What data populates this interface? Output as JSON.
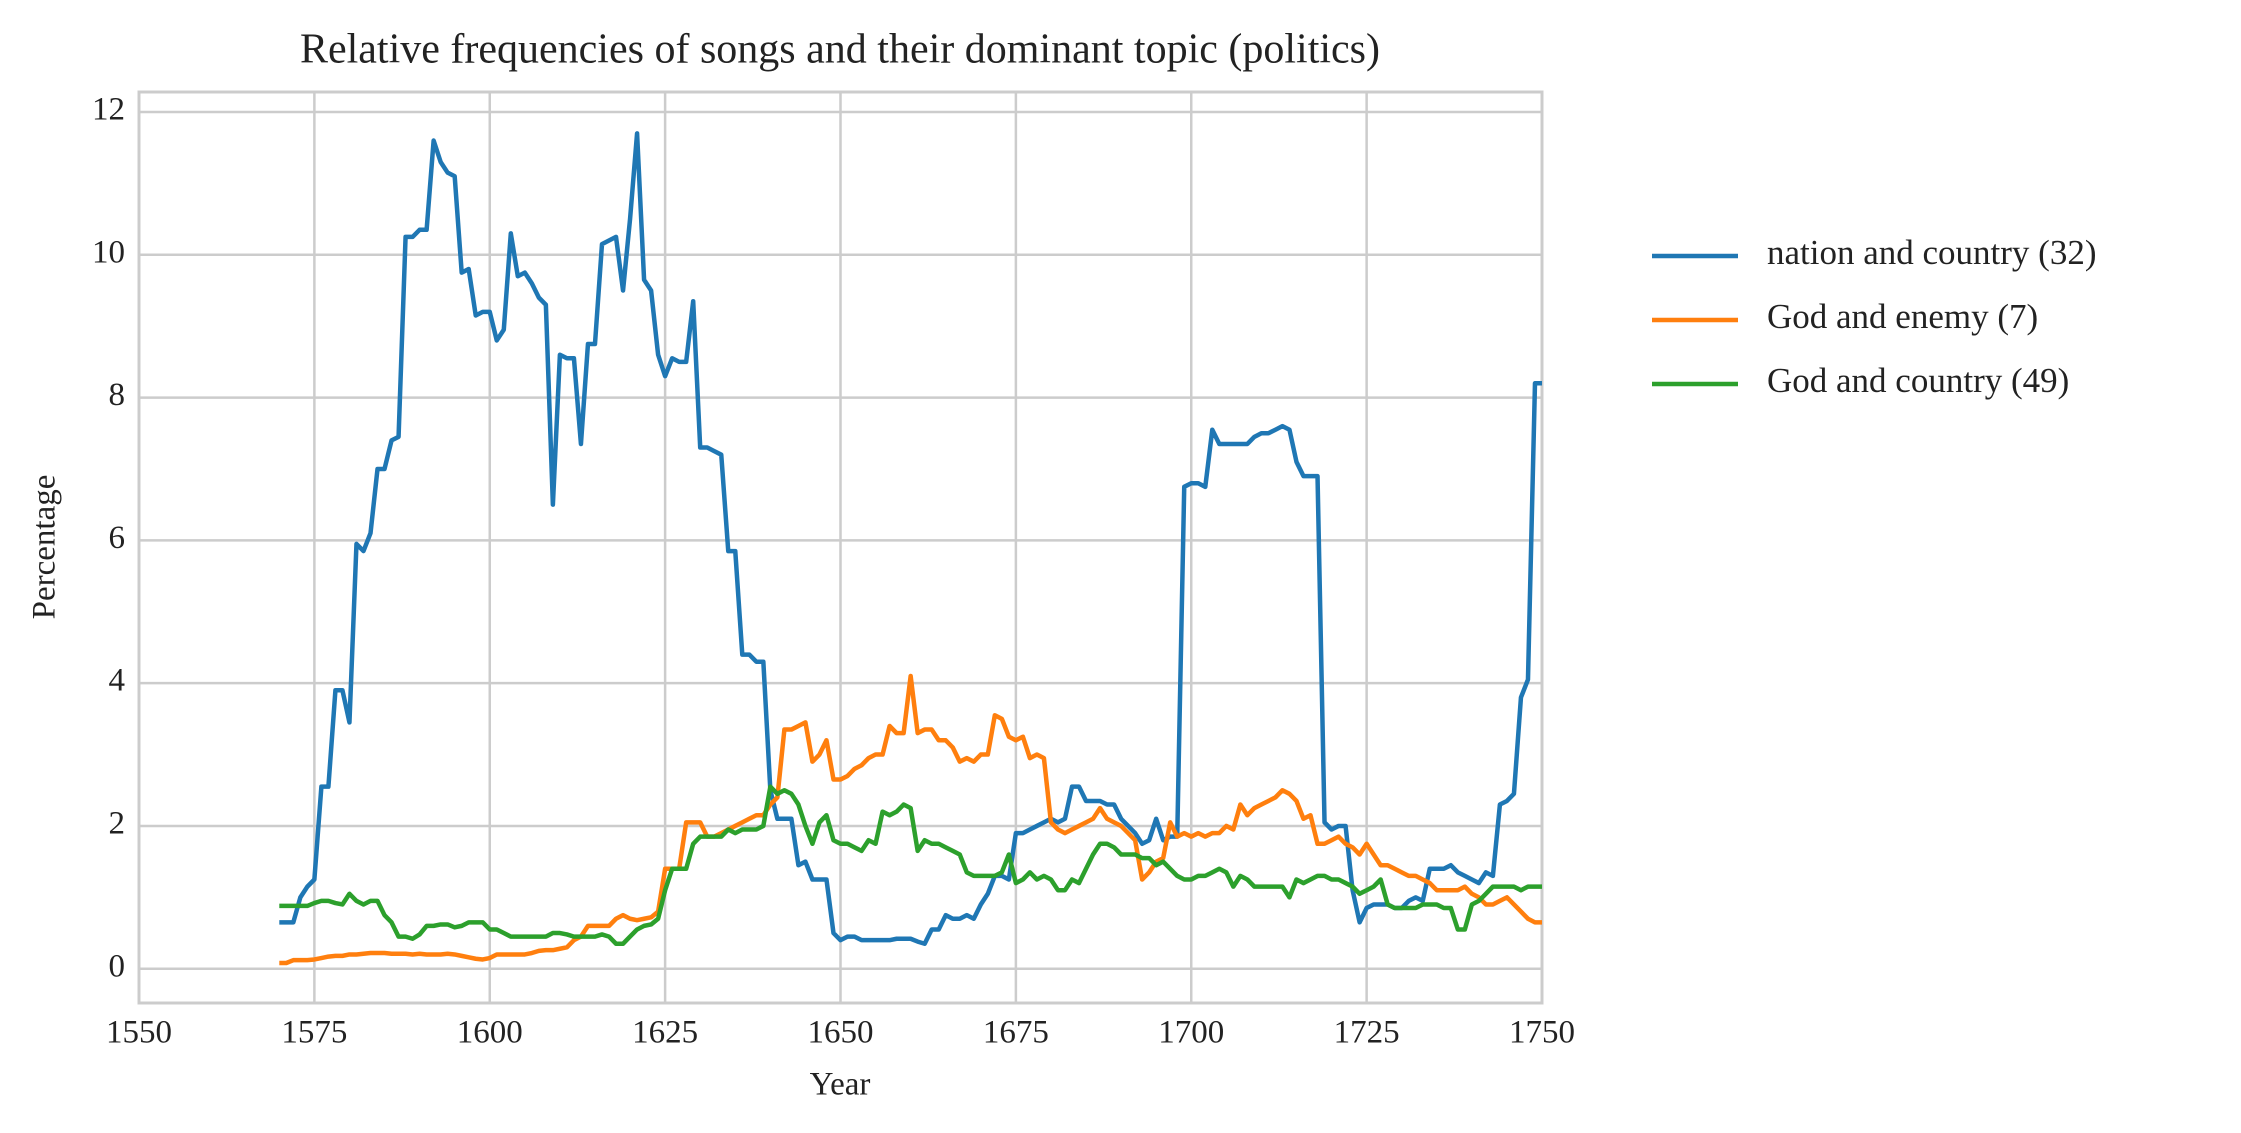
{
  "chart_data": {
    "type": "line",
    "title": "Relative frequencies of songs and their dominant topic (politics)",
    "xlabel": "Year",
    "ylabel": "Percentage",
    "x": [
      1570,
      1571,
      1572,
      1573,
      1574,
      1575,
      1576,
      1577,
      1578,
      1579,
      1580,
      1581,
      1582,
      1583,
      1584,
      1585,
      1586,
      1587,
      1588,
      1589,
      1590,
      1591,
      1592,
      1593,
      1594,
      1595,
      1596,
      1597,
      1598,
      1599,
      1600,
      1601,
      1602,
      1603,
      1604,
      1605,
      1606,
      1607,
      1608,
      1609,
      1610,
      1611,
      1612,
      1613,
      1614,
      1615,
      1616,
      1617,
      1618,
      1619,
      1620,
      1621,
      1622,
      1623,
      1624,
      1625,
      1626,
      1627,
      1628,
      1629,
      1630,
      1631,
      1632,
      1633,
      1634,
      1635,
      1636,
      1637,
      1638,
      1639,
      1640,
      1641,
      1642,
      1643,
      1644,
      1645,
      1646,
      1647,
      1648,
      1649,
      1650,
      1651,
      1652,
      1653,
      1654,
      1655,
      1656,
      1657,
      1658,
      1659,
      1660,
      1661,
      1662,
      1663,
      1664,
      1665,
      1666,
      1667,
      1668,
      1669,
      1670,
      1671,
      1672,
      1673,
      1674,
      1675,
      1676,
      1677,
      1678,
      1679,
      1680,
      1681,
      1682,
      1683,
      1684,
      1685,
      1686,
      1687,
      1688,
      1689,
      1690,
      1691,
      1692,
      1693,
      1694,
      1695,
      1696,
      1697,
      1698,
      1699,
      1700,
      1701,
      1702,
      1703,
      1704,
      1705,
      1706,
      1707,
      1708,
      1709,
      1710,
      1711,
      1712,
      1713,
      1714,
      1715,
      1716,
      1717,
      1718,
      1719,
      1720,
      1721,
      1722,
      1723,
      1724,
      1725,
      1726,
      1727,
      1728,
      1729,
      1730,
      1731,
      1732,
      1733,
      1734,
      1735,
      1736,
      1737,
      1738,
      1739,
      1740,
      1741,
      1742,
      1743,
      1744,
      1745,
      1746,
      1747,
      1748,
      1749,
      1750
    ],
    "series": [
      {
        "name": "nation and country (32)",
        "color": "#1f77b4",
        "values": [
          0.65,
          0.65,
          0.65,
          1.0,
          1.15,
          1.25,
          2.55,
          2.55,
          3.9,
          3.9,
          3.45,
          5.95,
          5.85,
          6.1,
          7.0,
          7.0,
          7.4,
          7.45,
          10.25,
          10.25,
          10.35,
          10.35,
          11.6,
          11.3,
          11.15,
          11.1,
          9.75,
          9.8,
          9.15,
          9.2,
          9.2,
          8.8,
          8.95,
          10.3,
          9.7,
          9.75,
          9.6,
          9.4,
          9.3,
          6.5,
          8.6,
          8.55,
          8.55,
          7.35,
          8.75,
          8.75,
          10.15,
          10.2,
          10.25,
          9.5,
          10.5,
          11.7,
          9.65,
          9.5,
          8.6,
          8.3,
          8.55,
          8.5,
          8.5,
          9.35,
          7.3,
          7.3,
          7.25,
          7.2,
          5.85,
          5.85,
          4.4,
          4.4,
          4.3,
          4.3,
          2.5,
          2.1,
          2.1,
          2.1,
          1.45,
          1.5,
          1.25,
          1.25,
          1.25,
          0.5,
          0.4,
          0.45,
          0.45,
          0.4,
          0.4,
          0.4,
          0.4,
          0.4,
          0.42,
          0.42,
          0.42,
          0.38,
          0.35,
          0.55,
          0.55,
          0.75,
          0.7,
          0.7,
          0.75,
          0.7,
          0.9,
          1.05,
          1.3,
          1.3,
          1.25,
          1.9,
          1.9,
          1.95,
          2.0,
          2.05,
          2.1,
          2.05,
          2.1,
          2.55,
          2.55,
          2.35,
          2.35,
          2.35,
          2.3,
          2.3,
          2.1,
          2.0,
          1.9,
          1.75,
          1.8,
          2.1,
          1.8,
          1.85,
          1.85,
          6.75,
          6.8,
          6.8,
          6.75,
          7.55,
          7.35,
          7.35,
          7.35,
          7.35,
          7.35,
          7.45,
          7.5,
          7.5,
          7.55,
          7.6,
          7.55,
          7.1,
          6.9,
          6.9,
          6.9,
          2.05,
          1.95,
          2.0,
          2.0,
          1.1,
          0.65,
          0.85,
          0.9,
          0.9,
          0.9,
          0.85,
          0.85,
          0.95,
          1.0,
          0.95,
          1.4,
          1.4,
          1.4,
          1.45,
          1.35,
          1.3,
          1.25,
          1.2,
          1.35,
          1.3,
          2.3,
          2.35,
          2.45,
          3.8,
          4.05,
          8.2,
          8.2
        ]
      },
      {
        "name": "God and enemy (7)",
        "color": "#ff7f0e",
        "values": [
          0.08,
          0.08,
          0.12,
          0.12,
          0.12,
          0.13,
          0.15,
          0.17,
          0.18,
          0.18,
          0.2,
          0.2,
          0.21,
          0.22,
          0.22,
          0.22,
          0.21,
          0.21,
          0.21,
          0.2,
          0.21,
          0.2,
          0.2,
          0.2,
          0.21,
          0.2,
          0.18,
          0.16,
          0.14,
          0.13,
          0.15,
          0.2,
          0.2,
          0.2,
          0.2,
          0.2,
          0.22,
          0.25,
          0.26,
          0.26,
          0.28,
          0.3,
          0.4,
          0.45,
          0.6,
          0.6,
          0.6,
          0.6,
          0.7,
          0.75,
          0.7,
          0.68,
          0.7,
          0.72,
          0.8,
          1.4,
          1.4,
          1.4,
          2.05,
          2.05,
          2.05,
          1.85,
          1.85,
          1.9,
          1.95,
          2.0,
          2.05,
          2.1,
          2.15,
          2.15,
          2.3,
          2.4,
          3.35,
          3.35,
          3.4,
          3.45,
          2.9,
          3.0,
          3.2,
          2.65,
          2.65,
          2.7,
          2.8,
          2.85,
          2.95,
          3.0,
          3.0,
          3.4,
          3.3,
          3.3,
          4.1,
          3.3,
          3.35,
          3.35,
          3.2,
          3.2,
          3.1,
          2.9,
          2.95,
          2.9,
          3.0,
          3.0,
          3.55,
          3.5,
          3.25,
          3.2,
          3.25,
          2.95,
          3.0,
          2.95,
          2.05,
          1.95,
          1.9,
          1.95,
          2.0,
          2.05,
          2.1,
          2.25,
          2.1,
          2.05,
          2.0,
          1.9,
          1.8,
          1.25,
          1.35,
          1.5,
          1.55,
          2.05,
          1.85,
          1.9,
          1.85,
          1.9,
          1.85,
          1.9,
          1.9,
          2.0,
          1.95,
          2.3,
          2.15,
          2.25,
          2.3,
          2.35,
          2.4,
          2.5,
          2.45,
          2.35,
          2.1,
          2.15,
          1.75,
          1.75,
          1.8,
          1.85,
          1.75,
          1.7,
          1.6,
          1.75,
          1.6,
          1.45,
          1.45,
          1.4,
          1.35,
          1.3,
          1.3,
          1.25,
          1.2,
          1.1,
          1.1,
          1.1,
          1.1,
          1.15,
          1.05,
          1.0,
          0.9,
          0.9,
          0.95,
          1.0,
          0.9,
          0.8,
          0.7,
          0.65,
          0.65
        ]
      },
      {
        "name": "God and country (49)",
        "color": "#2ca02c",
        "values": [
          0.88,
          0.88,
          0.88,
          0.88,
          0.88,
          0.92,
          0.95,
          0.95,
          0.92,
          0.9,
          1.05,
          0.95,
          0.9,
          0.95,
          0.95,
          0.75,
          0.65,
          0.45,
          0.45,
          0.42,
          0.48,
          0.6,
          0.6,
          0.62,
          0.62,
          0.58,
          0.6,
          0.65,
          0.65,
          0.65,
          0.55,
          0.55,
          0.5,
          0.45,
          0.45,
          0.45,
          0.45,
          0.45,
          0.45,
          0.5,
          0.5,
          0.48,
          0.45,
          0.45,
          0.45,
          0.45,
          0.48,
          0.45,
          0.35,
          0.35,
          0.45,
          0.55,
          0.6,
          0.62,
          0.7,
          1.1,
          1.4,
          1.4,
          1.4,
          1.75,
          1.85,
          1.85,
          1.85,
          1.85,
          1.95,
          1.9,
          1.95,
          1.95,
          1.95,
          2.0,
          2.55,
          2.45,
          2.5,
          2.45,
          2.3,
          2.0,
          1.75,
          2.05,
          2.15,
          1.8,
          1.75,
          1.75,
          1.7,
          1.65,
          1.8,
          1.75,
          2.2,
          2.15,
          2.2,
          2.3,
          2.25,
          1.65,
          1.8,
          1.75,
          1.75,
          1.7,
          1.65,
          1.6,
          1.35,
          1.3,
          1.3,
          1.3,
          1.3,
          1.35,
          1.6,
          1.2,
          1.25,
          1.35,
          1.25,
          1.3,
          1.25,
          1.1,
          1.1,
          1.25,
          1.2,
          1.4,
          1.6,
          1.75,
          1.75,
          1.7,
          1.6,
          1.6,
          1.6,
          1.55,
          1.55,
          1.45,
          1.5,
          1.4,
          1.3,
          1.25,
          1.25,
          1.3,
          1.3,
          1.35,
          1.4,
          1.35,
          1.15,
          1.3,
          1.25,
          1.15,
          1.15,
          1.15,
          1.15,
          1.15,
          1.0,
          1.25,
          1.2,
          1.25,
          1.3,
          1.3,
          1.25,
          1.25,
          1.2,
          1.15,
          1.05,
          1.1,
          1.15,
          1.25,
          0.9,
          0.85,
          0.85,
          0.85,
          0.85,
          0.9,
          0.9,
          0.9,
          0.85,
          0.85,
          0.55,
          0.55,
          0.9,
          0.95,
          1.05,
          1.15,
          1.15,
          1.15,
          1.15,
          1.1,
          1.15,
          1.15,
          1.15
        ]
      }
    ],
    "xlim": [
      1550,
      1750
    ],
    "xticks": [
      1550,
      1575,
      1600,
      1625,
      1650,
      1675,
      1700,
      1725,
      1750
    ],
    "ylim": [
      -0.48,
      12.28
    ],
    "yticks": [
      0,
      2,
      4,
      6,
      8,
      10,
      12
    ],
    "grid": true,
    "legend": "outside right"
  }
}
